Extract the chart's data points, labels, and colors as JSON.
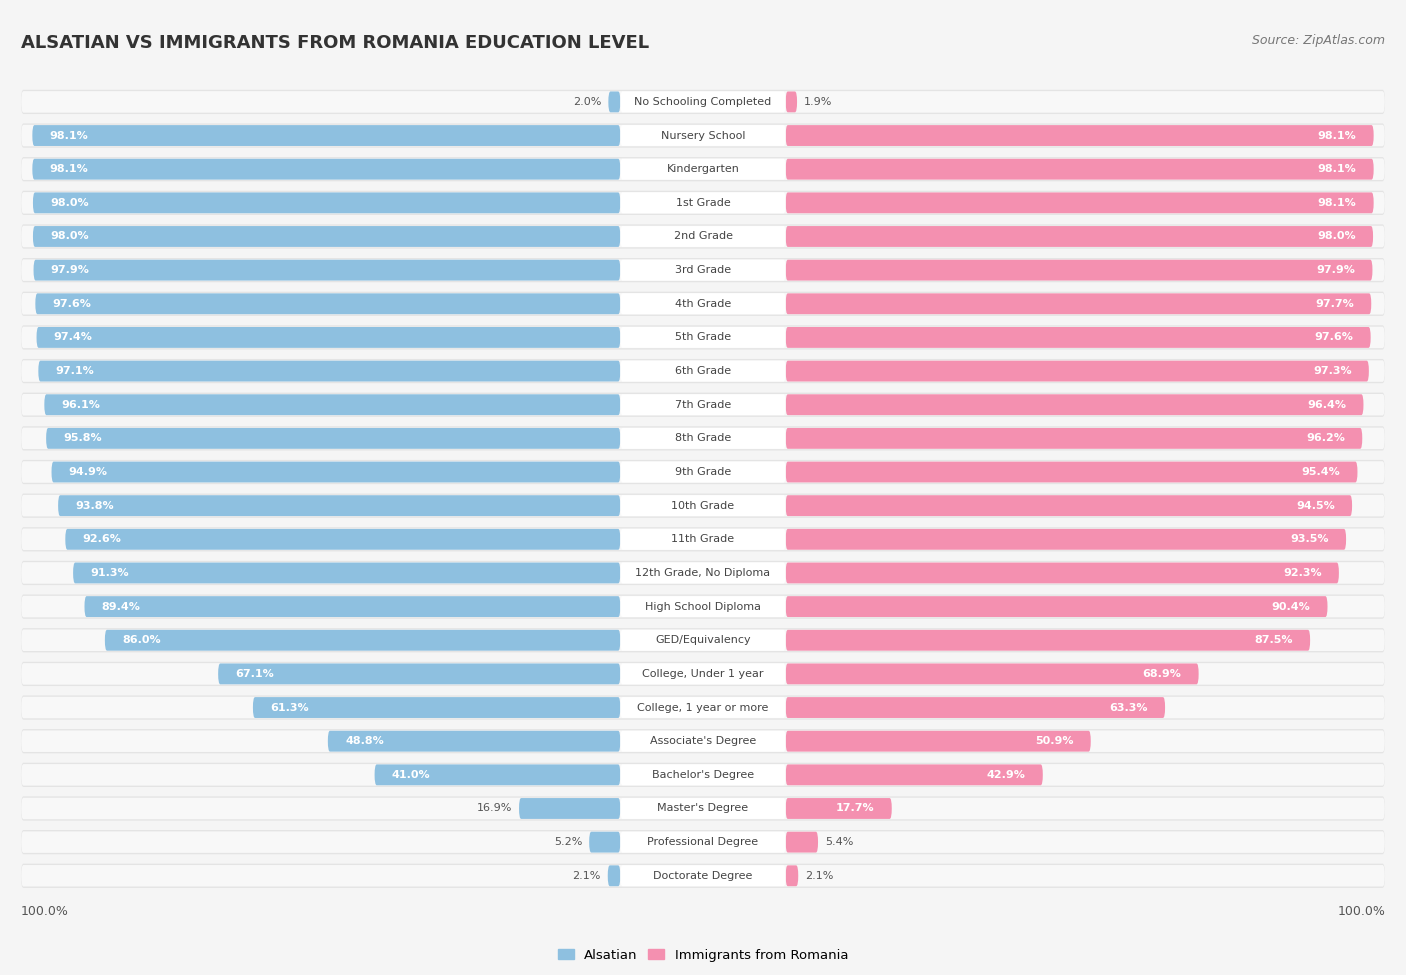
{
  "title": "ALSATIAN VS IMMIGRANTS FROM ROMANIA EDUCATION LEVEL",
  "source": "Source: ZipAtlas.com",
  "categories": [
    "No Schooling Completed",
    "Nursery School",
    "Kindergarten",
    "1st Grade",
    "2nd Grade",
    "3rd Grade",
    "4th Grade",
    "5th Grade",
    "6th Grade",
    "7th Grade",
    "8th Grade",
    "9th Grade",
    "10th Grade",
    "11th Grade",
    "12th Grade, No Diploma",
    "High School Diploma",
    "GED/Equivalency",
    "College, Under 1 year",
    "College, 1 year or more",
    "Associate's Degree",
    "Bachelor's Degree",
    "Master's Degree",
    "Professional Degree",
    "Doctorate Degree"
  ],
  "alsatian": [
    2.0,
    98.1,
    98.1,
    98.0,
    98.0,
    97.9,
    97.6,
    97.4,
    97.1,
    96.1,
    95.8,
    94.9,
    93.8,
    92.6,
    91.3,
    89.4,
    86.0,
    67.1,
    61.3,
    48.8,
    41.0,
    16.9,
    5.2,
    2.1
  ],
  "romania": [
    1.9,
    98.1,
    98.1,
    98.1,
    98.0,
    97.9,
    97.7,
    97.6,
    97.3,
    96.4,
    96.2,
    95.4,
    94.5,
    93.5,
    92.3,
    90.4,
    87.5,
    68.9,
    63.3,
    50.9,
    42.9,
    17.7,
    5.4,
    2.1
  ],
  "alsatian_color": "#8ec0e0",
  "romania_color": "#f490b0",
  "row_bg_color": "#e4e4e4",
  "bar_inner_bg": "#f8f8f8",
  "background_color": "#f5f5f5",
  "label_fontsize": 8.0,
  "value_fontsize": 8.0
}
